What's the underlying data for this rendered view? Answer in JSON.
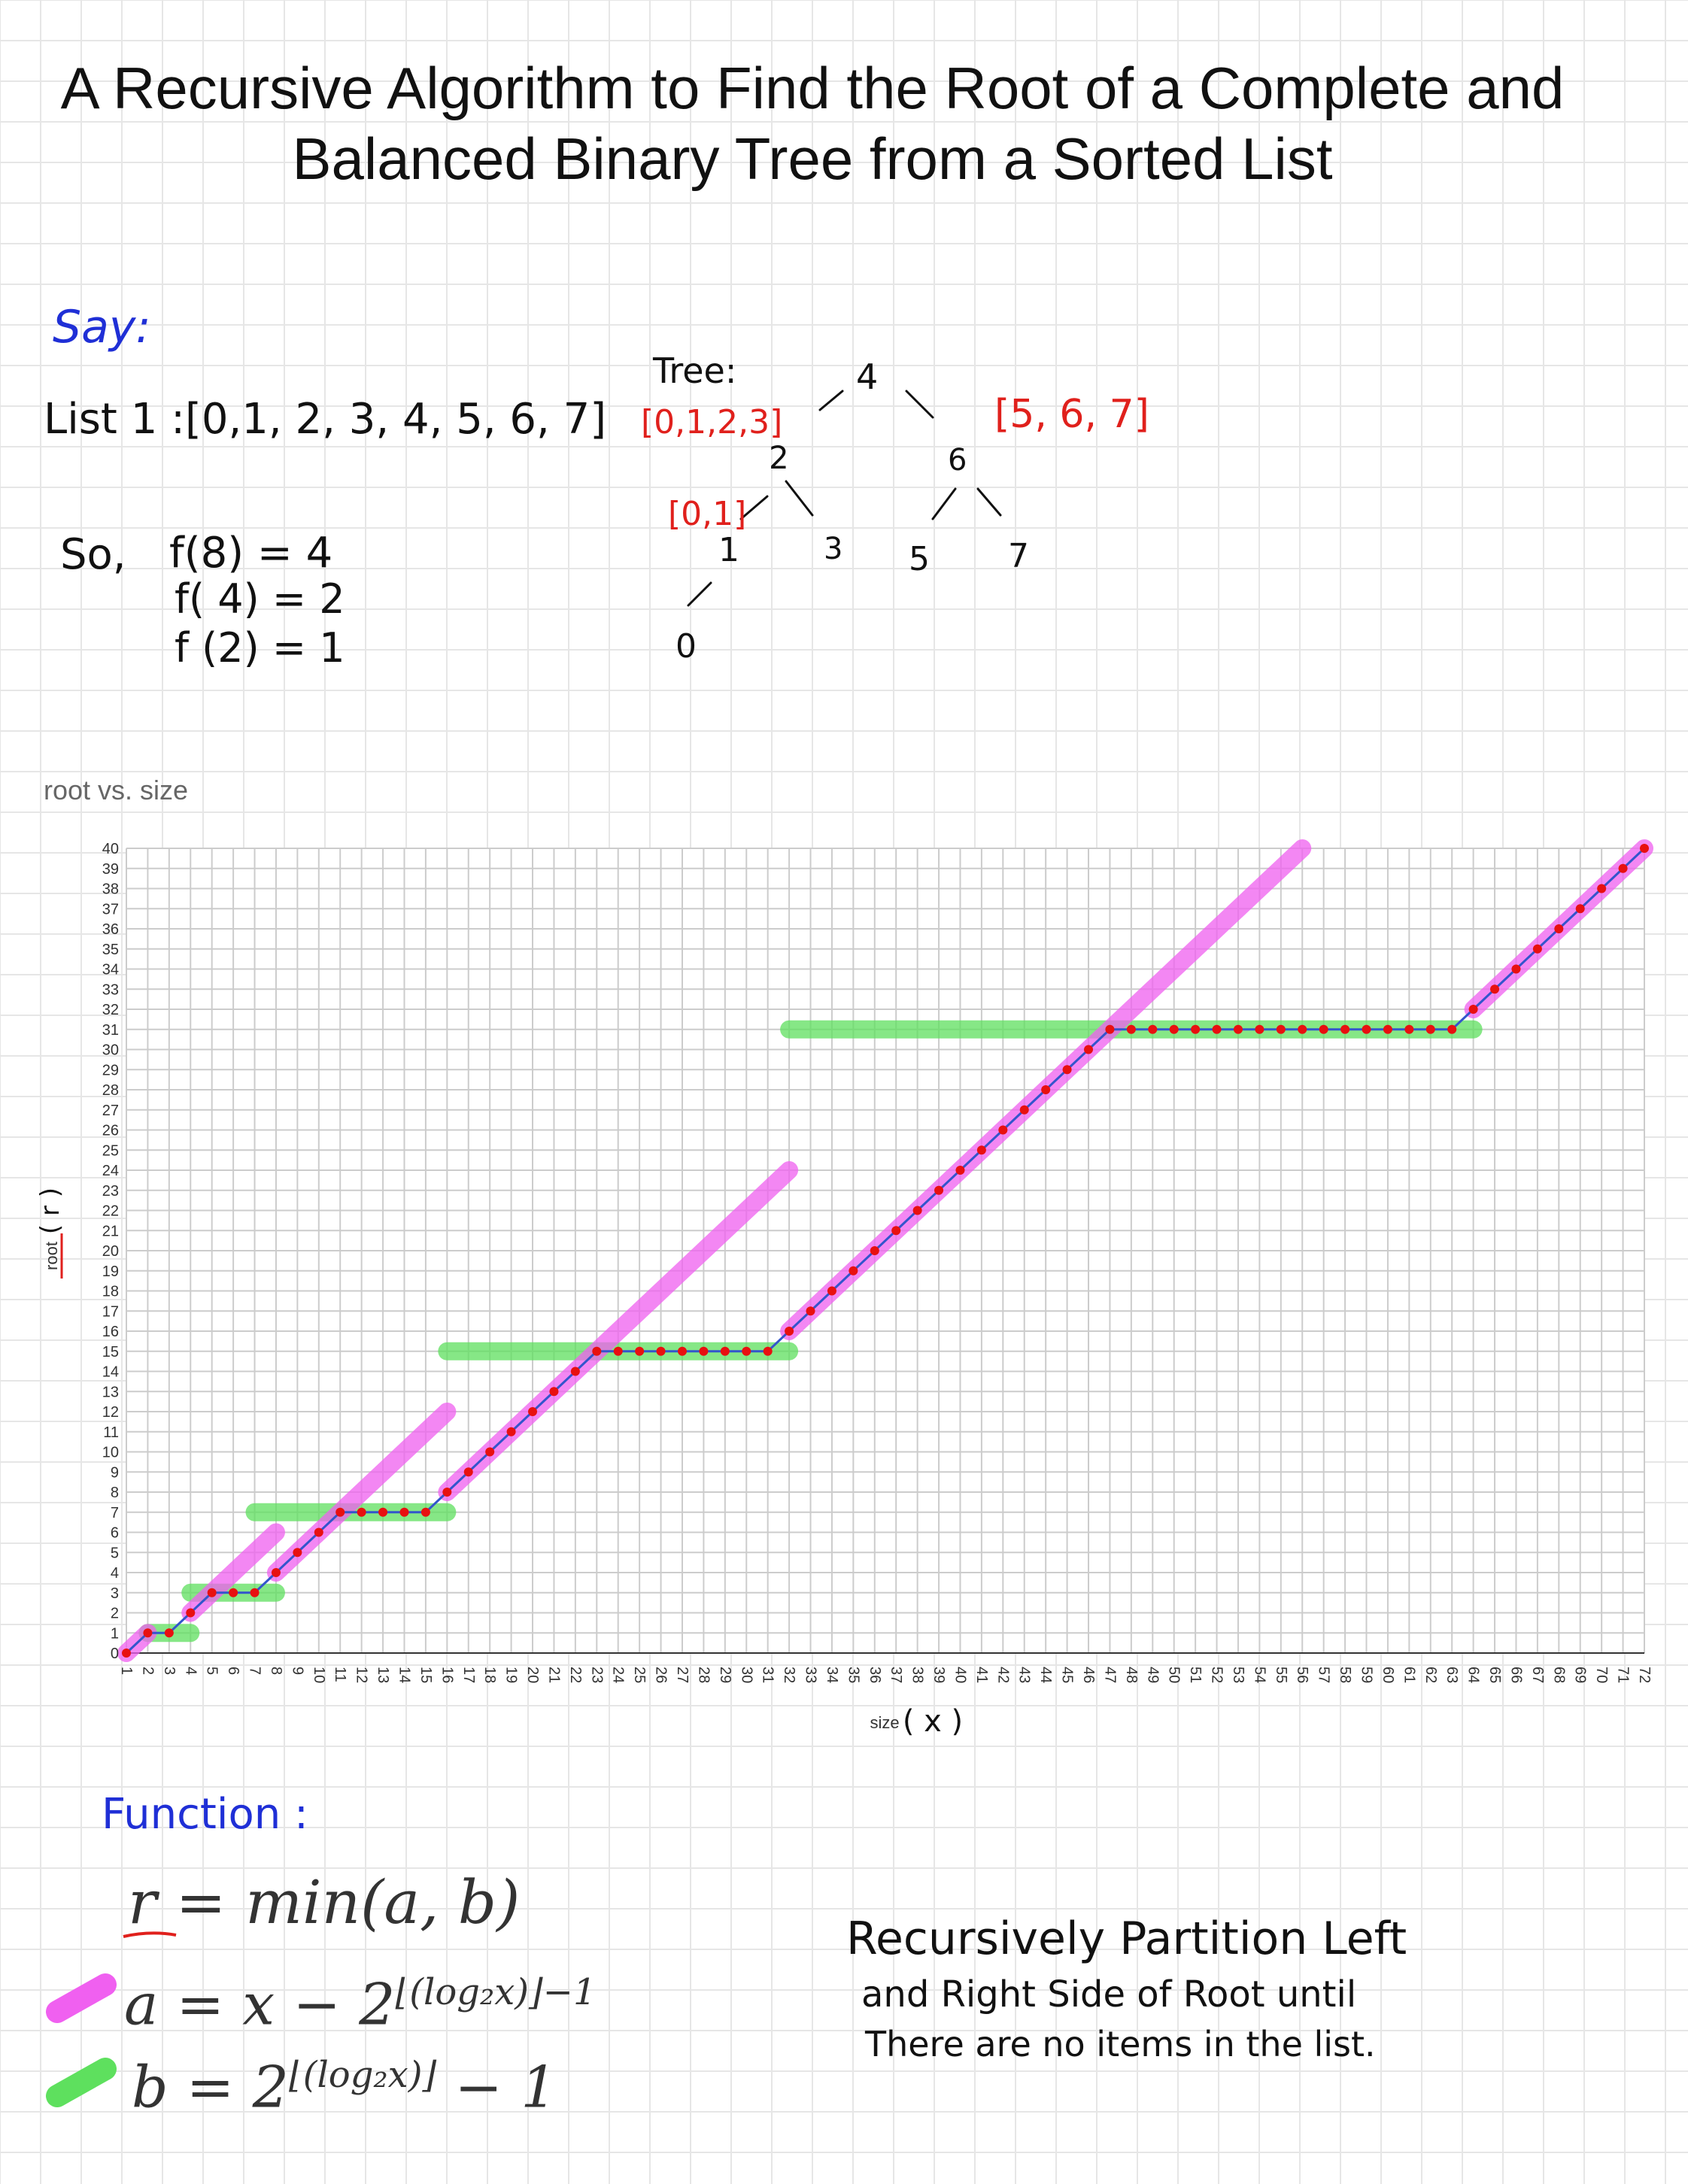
{
  "title": {
    "line1": "A Recursive Algorithm to Find the Root of a Complete and",
    "line2": "Balanced Binary Tree from a Sorted List"
  },
  "notes": {
    "say": "Say:",
    "list": "List 1 :[0,1, 2, 3, 4, 5, 6, 7]",
    "so": "So,",
    "f1": "f(8) = 4",
    "f2": "f( 4) = 2",
    "f3": "f (2) = 1",
    "tree_label": "Tree:",
    "tree_nodes": {
      "n4": "4",
      "n2": "2",
      "n6": "6",
      "n1": "1",
      "n3": "3",
      "n5": "5",
      "n7": "7",
      "n0": "0"
    },
    "left_sub": "[0,1,2,3]",
    "right_sub": "[5, 6, 7]",
    "left_left_sub": "[0,1]",
    "function_label": "Function :",
    "eq_r": "r = min(a, b)",
    "eq_a_base": "a = x − 2",
    "eq_a_exp": "⌊(log₂x)⌋−1",
    "eq_b_base": "b = 2",
    "eq_b_exp": "⌊(log₂x)⌋",
    "eq_b_tail": " − 1",
    "desc1": "Recursively   Partition Left",
    "desc2": "and  Right Side  of  Root until",
    "desc3": "There are no items  in the list."
  },
  "chart_data": {
    "type": "line",
    "title": "root vs. size",
    "xlabel": "size",
    "xlabel_annotation": "( x )",
    "ylabel": "root",
    "ylabel_annotation": "( r )",
    "xlim": [
      1,
      72
    ],
    "ylim": [
      0,
      40
    ],
    "x": [
      1,
      2,
      3,
      4,
      5,
      6,
      7,
      8,
      9,
      10,
      11,
      12,
      13,
      14,
      15,
      16,
      17,
      18,
      19,
      20,
      21,
      22,
      23,
      24,
      25,
      26,
      27,
      28,
      29,
      30,
      31,
      32,
      33,
      34,
      35,
      36,
      37,
      38,
      39,
      40,
      41,
      42,
      43,
      44,
      45,
      46,
      47,
      48,
      49,
      50,
      51,
      52,
      53,
      54,
      55,
      56,
      57,
      58,
      59,
      60,
      61,
      62,
      63,
      64,
      65,
      66,
      67,
      68,
      69,
      70,
      71,
      72
    ],
    "series": [
      {
        "name": "root",
        "color": "#e81010",
        "values": [
          0,
          1,
          1,
          2,
          3,
          3,
          3,
          4,
          5,
          6,
          7,
          7,
          7,
          7,
          7,
          8,
          9,
          10,
          11,
          12,
          13,
          14,
          15,
          15,
          15,
          15,
          15,
          15,
          15,
          15,
          15,
          16,
          17,
          18,
          19,
          20,
          21,
          22,
          23,
          24,
          25,
          26,
          27,
          28,
          29,
          30,
          31,
          31,
          31,
          31,
          31,
          31,
          31,
          31,
          31,
          31,
          31,
          31,
          31,
          31,
          31,
          31,
          31,
          32,
          33,
          34,
          35,
          36,
          37,
          38,
          39,
          40
        ]
      }
    ],
    "highlight_a": [
      {
        "from": [
          1,
          0
        ],
        "to": [
          2,
          1
        ]
      },
      {
        "from": [
          4,
          2
        ],
        "to": [
          8,
          6
        ]
      },
      {
        "from": [
          8,
          4
        ],
        "to": [
          16,
          12
        ]
      },
      {
        "from": [
          16,
          8
        ],
        "to": [
          32,
          24
        ]
      },
      {
        "from": [
          32,
          16
        ],
        "to": [
          56,
          40
        ]
      },
      {
        "from": [
          64,
          32
        ],
        "to": [
          72,
          40
        ]
      }
    ],
    "highlight_b": [
      {
        "from": [
          2,
          1
        ],
        "to": [
          4,
          1
        ]
      },
      {
        "from": [
          4,
          3
        ],
        "to": [
          8,
          3
        ]
      },
      {
        "from": [
          7,
          7
        ],
        "to": [
          16,
          7
        ]
      },
      {
        "from": [
          16,
          15
        ],
        "to": [
          32,
          15
        ]
      },
      {
        "from": [
          32,
          31
        ],
        "to": [
          64,
          31
        ]
      }
    ],
    "legend_colors": {
      "a": "#f060f0",
      "b": "#5ee05e"
    }
  }
}
